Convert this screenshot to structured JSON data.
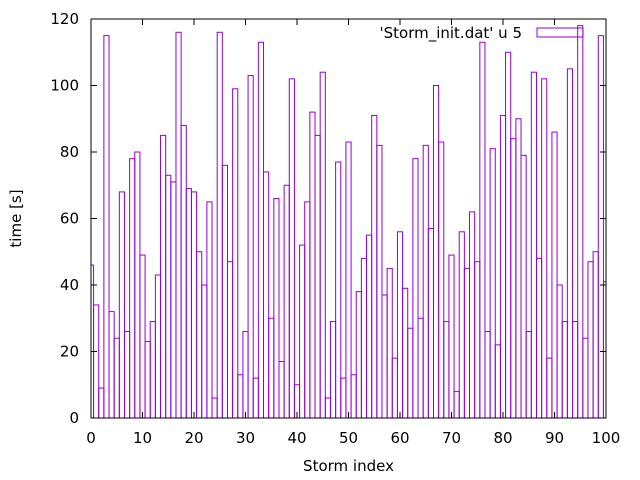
{
  "chart_data": {
    "type": "bar",
    "style": "step histogram (unfilled boxes)",
    "title": "",
    "xlabel": "Storm index",
    "ylabel": "time [s]",
    "xlim": [
      0,
      100
    ],
    "ylim": [
      0,
      120
    ],
    "xticks": [
      "0",
      "10",
      "20",
      "30",
      "40",
      "50",
      "60",
      "70",
      "80",
      "90",
      "100"
    ],
    "yticks": [
      "0",
      "20",
      "40",
      "60",
      "80",
      "100",
      "120"
    ],
    "legend_position": "top-right",
    "grid": false,
    "series": [
      {
        "name": "'Storm_init.dat' u 5",
        "color": "#9400d3",
        "x": [
          0,
          1,
          2,
          3,
          4,
          5,
          6,
          7,
          8,
          9,
          10,
          11,
          12,
          13,
          14,
          15,
          16,
          17,
          18,
          19,
          20,
          21,
          22,
          23,
          24,
          25,
          26,
          27,
          28,
          29,
          30,
          31,
          32,
          33,
          34,
          35,
          36,
          37,
          38,
          39,
          40,
          41,
          42,
          43,
          44,
          45,
          46,
          47,
          48,
          49,
          50,
          51,
          52,
          53,
          54,
          55,
          56,
          57,
          58,
          59,
          60,
          61,
          62,
          63,
          64,
          65,
          66,
          67,
          68,
          69,
          70,
          71,
          72,
          73,
          74,
          75,
          76,
          77,
          78,
          79,
          80,
          81,
          82,
          83,
          84,
          85,
          86,
          87,
          88,
          89,
          90,
          91,
          92,
          93,
          94,
          95,
          96,
          97,
          98,
          99,
          100
        ],
        "values": [
          46,
          34,
          9,
          115,
          32,
          24,
          68,
          26,
          78,
          80,
          49,
          23,
          29,
          43,
          85,
          73,
          71,
          116,
          88,
          69,
          68,
          50,
          40,
          65,
          6,
          116,
          76,
          47,
          99,
          13,
          26,
          103,
          12,
          113,
          74,
          30,
          66,
          17,
          70,
          102,
          10,
          52,
          65,
          92,
          85,
          104,
          6,
          29,
          77,
          12,
          83,
          13,
          38,
          48,
          55,
          91,
          82,
          37,
          45,
          18,
          56,
          39,
          27,
          78,
          30,
          82,
          57,
          100,
          83,
          29,
          49,
          8,
          56,
          45,
          62,
          47,
          113,
          26,
          81,
          22,
          91,
          110,
          84,
          90,
          79,
          26,
          104,
          48,
          102,
          18,
          86,
          40,
          29,
          105,
          29,
          118,
          24,
          47,
          50,
          115,
          41
        ]
      }
    ]
  }
}
